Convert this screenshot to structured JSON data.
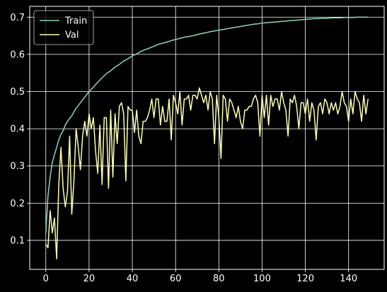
{
  "chart_data": {
    "type": "line",
    "title": "",
    "xlabel": "",
    "ylabel": "",
    "xlim": [
      -7.45,
      156.45
    ],
    "ylim": [
      0.022,
      0.729
    ],
    "xticks": [
      0,
      20,
      40,
      60,
      80,
      100,
      120,
      140
    ],
    "yticks": [
      0.1,
      0.2,
      0.3,
      0.4,
      0.5,
      0.6,
      0.7
    ],
    "grid": true,
    "legend": {
      "position": "top-left"
    },
    "series": [
      {
        "name": "Train",
        "color": "#8dd3c7",
        "x": [
          0,
          1,
          2,
          3,
          4,
          5,
          6,
          7,
          8,
          9,
          10,
          12,
          14,
          16,
          18,
          20,
          22,
          24,
          26,
          28,
          30,
          32,
          34,
          36,
          38,
          40,
          42,
          44,
          46,
          48,
          50,
          52,
          54,
          56,
          58,
          60,
          62,
          64,
          66,
          68,
          70,
          72,
          74,
          76,
          78,
          80,
          82,
          84,
          86,
          88,
          90,
          92,
          94,
          96,
          98,
          100,
          102,
          104,
          106,
          108,
          110,
          112,
          114,
          116,
          118,
          120,
          122,
          124,
          126,
          128,
          130,
          132,
          134,
          136,
          138,
          140,
          142,
          144,
          146,
          148,
          149
        ],
        "y": [
          0.12,
          0.22,
          0.27,
          0.31,
          0.33,
          0.35,
          0.37,
          0.385,
          0.395,
          0.41,
          0.42,
          0.435,
          0.455,
          0.47,
          0.485,
          0.5,
          0.512,
          0.525,
          0.537,
          0.548,
          0.556,
          0.566,
          0.573,
          0.582,
          0.588,
          0.596,
          0.601,
          0.608,
          0.613,
          0.617,
          0.622,
          0.627,
          0.63,
          0.633,
          0.637,
          0.64,
          0.643,
          0.646,
          0.648,
          0.65,
          0.653,
          0.656,
          0.658,
          0.661,
          0.663,
          0.665,
          0.667,
          0.669,
          0.671,
          0.673,
          0.675,
          0.677,
          0.679,
          0.681,
          0.682,
          0.684,
          0.685,
          0.686,
          0.687,
          0.688,
          0.689,
          0.69,
          0.691,
          0.692,
          0.693,
          0.694,
          0.695,
          0.696,
          0.696,
          0.697,
          0.697,
          0.698,
          0.698,
          0.698,
          0.699,
          0.699,
          0.699,
          0.7,
          0.7,
          0.7,
          0.7
        ]
      },
      {
        "name": "Val",
        "color": "#ffffb3",
        "x": [
          0,
          1,
          2,
          3,
          4,
          5,
          6,
          7,
          8,
          9,
          10,
          11,
          12,
          13,
          14,
          15,
          16,
          17,
          18,
          19,
          20,
          21,
          22,
          23,
          24,
          25,
          26,
          27,
          28,
          29,
          30,
          31,
          32,
          33,
          34,
          35,
          36,
          37,
          38,
          39,
          40,
          41,
          42,
          43,
          44,
          45,
          46,
          47,
          48,
          49,
          50,
          51,
          52,
          53,
          54,
          55,
          56,
          57,
          58,
          59,
          60,
          61,
          62,
          63,
          64,
          65,
          66,
          67,
          68,
          69,
          70,
          71,
          72,
          73,
          74,
          75,
          76,
          77,
          78,
          79,
          80,
          81,
          82,
          83,
          84,
          85,
          86,
          87,
          88,
          89,
          90,
          91,
          92,
          93,
          94,
          95,
          96,
          97,
          98,
          99,
          100,
          101,
          102,
          103,
          104,
          105,
          106,
          107,
          108,
          109,
          110,
          111,
          112,
          113,
          114,
          115,
          116,
          117,
          118,
          119,
          120,
          121,
          122,
          123,
          124,
          125,
          126,
          127,
          128,
          129,
          130,
          131,
          132,
          133,
          134,
          135,
          136,
          137,
          138,
          139,
          140,
          141,
          142,
          143,
          144,
          145,
          146,
          147,
          148,
          149
        ],
        "y": [
          0.09,
          0.08,
          0.18,
          0.12,
          0.16,
          0.05,
          0.25,
          0.35,
          0.24,
          0.19,
          0.23,
          0.38,
          0.17,
          0.26,
          0.4,
          0.35,
          0.29,
          0.38,
          0.42,
          0.38,
          0.44,
          0.4,
          0.43,
          0.34,
          0.28,
          0.41,
          0.25,
          0.43,
          0.43,
          0.24,
          0.45,
          0.27,
          0.44,
          0.36,
          0.46,
          0.47,
          0.44,
          0.26,
          0.46,
          0.45,
          0.45,
          0.39,
          0.45,
          0.38,
          0.36,
          0.42,
          0.42,
          0.43,
          0.45,
          0.48,
          0.43,
          0.48,
          0.48,
          0.41,
          0.46,
          0.42,
          0.42,
          0.48,
          0.37,
          0.49,
          0.47,
          0.44,
          0.5,
          0.41,
          0.48,
          0.48,
          0.49,
          0.45,
          0.49,
          0.49,
          0.48,
          0.51,
          0.49,
          0.47,
          0.49,
          0.45,
          0.5,
          0.48,
          0.36,
          0.49,
          0.43,
          0.32,
          0.49,
          0.48,
          0.42,
          0.48,
          0.47,
          0.45,
          0.43,
          0.46,
          0.42,
          0.4,
          0.45,
          0.45,
          0.46,
          0.46,
          0.48,
          0.49,
          0.47,
          0.38,
          0.49,
          0.43,
          0.49,
          0.41,
          0.49,
          0.46,
          0.48,
          0.48,
          0.45,
          0.5,
          0.47,
          0.45,
          0.38,
          0.48,
          0.47,
          0.49,
          0.46,
          0.4,
          0.47,
          0.47,
          0.44,
          0.48,
          0.42,
          0.47,
          0.45,
          0.37,
          0.46,
          0.47,
          0.44,
          0.48,
          0.47,
          0.44,
          0.47,
          0.45,
          0.47,
          0.44,
          0.46,
          0.5,
          0.47,
          0.46,
          0.42,
          0.48,
          0.44,
          0.5,
          0.48,
          0.47,
          0.42,
          0.49,
          0.44,
          0.48
        ]
      }
    ]
  }
}
